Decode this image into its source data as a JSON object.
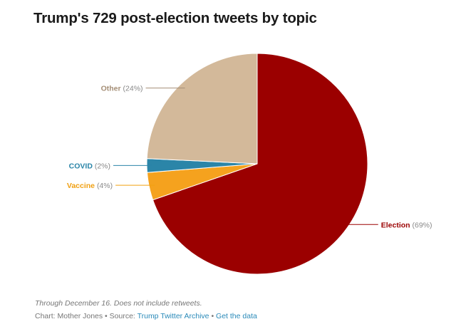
{
  "title": "Trump's 729 post-election tweets by topic",
  "chart_data": {
    "type": "pie",
    "title": "Trump's 729 post-election tweets by topic",
    "slices": [
      {
        "name": "Election",
        "percent_label": "(69%)",
        "value": 69,
        "color": "#9b0000",
        "label_color": "#9b0000",
        "label_side": "right"
      },
      {
        "name": "Vaccine",
        "percent_label": "(4%)",
        "value": 4,
        "color": "#f5a21e",
        "label_color": "#f0a012",
        "label_side": "left"
      },
      {
        "name": "COVID",
        "percent_label": "(2%)",
        "value": 2,
        "color": "#2b85a8",
        "label_color": "#2b85a8",
        "label_side": "left"
      },
      {
        "name": "Other",
        "percent_label": "(24%)",
        "value": 24,
        "color": "#d3b99a",
        "label_color": "#a58f77",
        "label_side": "left"
      }
    ]
  },
  "footer": {
    "note": "Through December 16. Does not include retweets.",
    "chart_by": "Chart: Mother Jones",
    "separator": " • ",
    "source_label": "Source:",
    "source_link": "Trump Twitter Archive",
    "data_link": "Get the data"
  }
}
